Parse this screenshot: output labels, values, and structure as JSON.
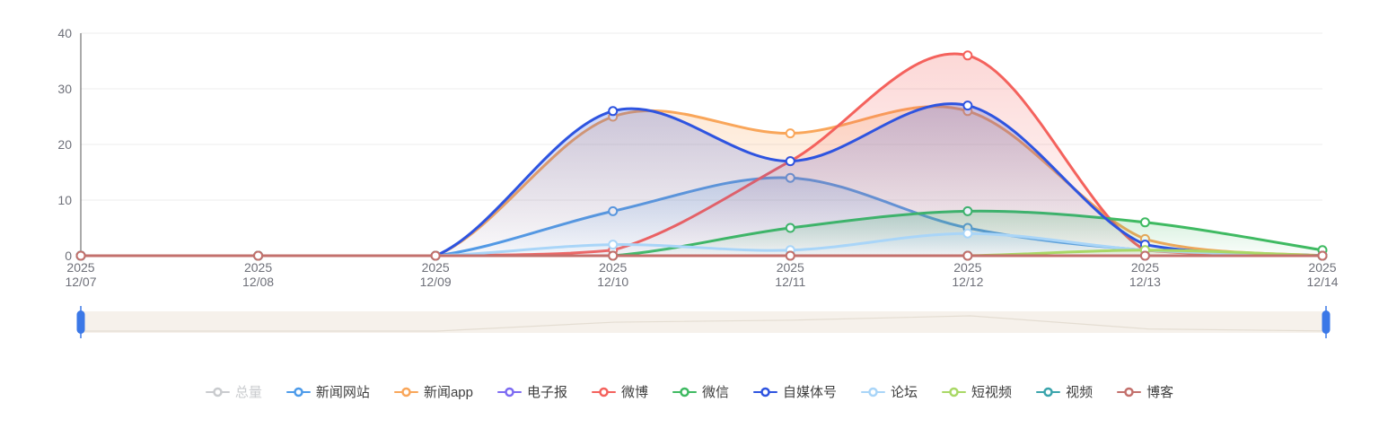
{
  "chart_data": {
    "type": "line",
    "smooth": true,
    "grid": "horizontal gridlines on",
    "legend_position": "bottom",
    "x_year": "2025",
    "categories": [
      "12/07",
      "12/08",
      "12/09",
      "12/10",
      "12/11",
      "12/12",
      "12/13",
      "12/14"
    ],
    "ylim": [
      0,
      40
    ],
    "y_ticks": [
      "0",
      "10",
      "20",
      "30",
      "40"
    ],
    "series": [
      {
        "name": "总量",
        "color": "#c9cbce",
        "selected": false,
        "values": null
      },
      {
        "name": "新闻网站",
        "color": "#4d9bea",
        "selected": true,
        "values": [
          0,
          0,
          0,
          8,
          14,
          5,
          1,
          0
        ]
      },
      {
        "name": "新闻app",
        "color": "#f9a65a",
        "selected": true,
        "values": [
          0,
          0,
          0,
          25,
          22,
          26,
          3,
          0
        ]
      },
      {
        "name": "电子报",
        "color": "#7d6bf2",
        "selected": true,
        "values": [
          0,
          0,
          0,
          0,
          0,
          0,
          0,
          0
        ]
      },
      {
        "name": "微博",
        "color": "#f4625d",
        "selected": true,
        "values": [
          0,
          0,
          0,
          1,
          17,
          36,
          1,
          0
        ]
      },
      {
        "name": "微信",
        "color": "#3fba62",
        "selected": true,
        "values": [
          0,
          0,
          0,
          0,
          5,
          8,
          6,
          1
        ]
      },
      {
        "name": "自媒体号",
        "color": "#2e54e0",
        "selected": true,
        "values": [
          0,
          0,
          0,
          26,
          17,
          27,
          2,
          0
        ]
      },
      {
        "name": "论坛",
        "color": "#a9d5f8",
        "selected": true,
        "values": [
          0,
          0,
          0,
          2,
          1,
          4,
          1,
          0
        ]
      },
      {
        "name": "短视频",
        "color": "#a9d866",
        "selected": true,
        "values": [
          0,
          0,
          0,
          0,
          0,
          0,
          1,
          0
        ]
      },
      {
        "name": "视频",
        "color": "#3aa4ac",
        "selected": true,
        "values": [
          0,
          0,
          0,
          0,
          0,
          0,
          0,
          0
        ]
      },
      {
        "name": "博客",
        "color": "#c3706c",
        "selected": true,
        "values": [
          0,
          0,
          0,
          0,
          0,
          0,
          0,
          0
        ]
      }
    ]
  },
  "datazoom": {
    "handle_color": "#3b78e7",
    "track_color": "#f6f1eb",
    "shadow_line_color": "#e4ddd2"
  },
  "axis": {
    "label_color": "#6e7079",
    "grid_color": "#ececec",
    "axis_line_color": "#555555"
  }
}
